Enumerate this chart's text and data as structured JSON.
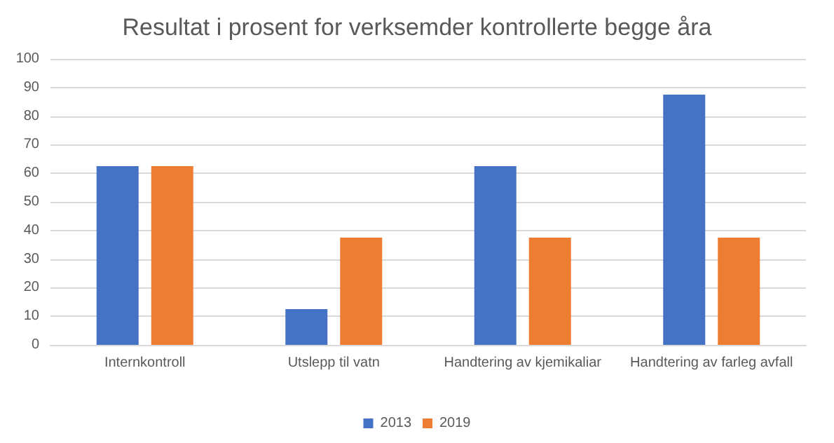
{
  "chart_data": {
    "type": "bar",
    "title": "Resultat i prosent for verksemder kontrollerte begge åra",
    "categories": [
      "Internkontroll",
      "Utslepp til vatn",
      "Handtering av kjemikaliar",
      "Handtering av farleg avfall"
    ],
    "series": [
      {
        "name": "2013",
        "color": "#4472c4",
        "values": [
          62.5,
          12.5,
          62.5,
          87.5
        ]
      },
      {
        "name": "2019",
        "color": "#ed7d31",
        "values": [
          62.5,
          37.5,
          37.5,
          37.5
        ]
      }
    ],
    "ylim": [
      0,
      100
    ],
    "yticks": [
      0,
      10,
      20,
      30,
      40,
      50,
      60,
      70,
      80,
      90,
      100
    ],
    "grid": "y",
    "legend": "bottom"
  }
}
